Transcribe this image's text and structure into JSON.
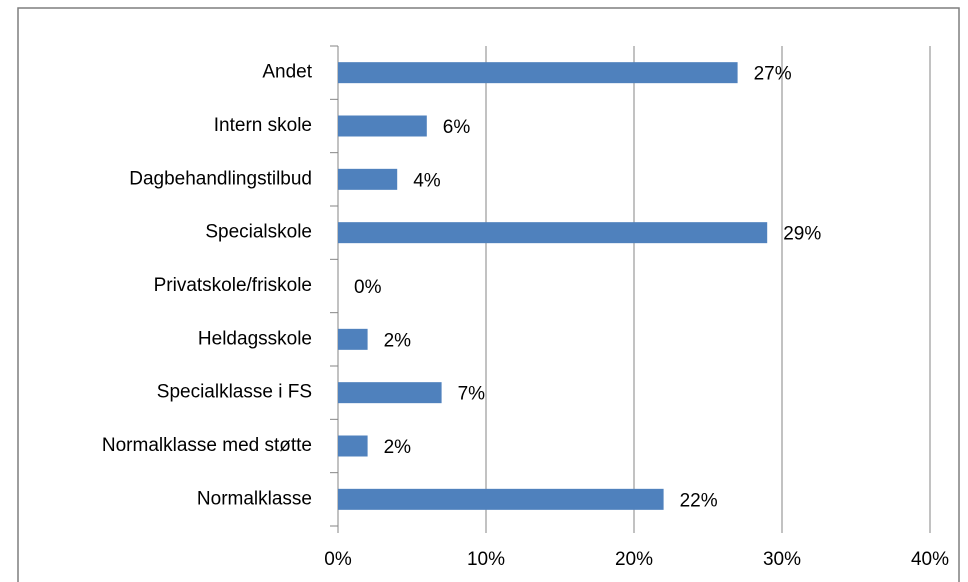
{
  "chart_data": {
    "type": "barh",
    "categories": [
      "Andet",
      "Intern skole",
      "Dagbehandlingstilbud",
      "Specialskole",
      "Privatskole/friskole",
      "Heldagsskole",
      "Specialklasse i FS",
      "Normalklasse med støtte",
      "Normalklasse"
    ],
    "values": [
      27,
      6,
      4,
      29,
      0,
      2,
      7,
      2,
      22
    ],
    "value_labels": [
      "27%",
      "6%",
      "4%",
      "29%",
      "0%",
      "2%",
      "7%",
      "2%",
      "22%"
    ],
    "color": "#4f81bd",
    "xlim": [
      0,
      40
    ],
    "xticks": [
      {
        "value": 0,
        "label": "0%"
      },
      {
        "value": 10,
        "label": "10%"
      },
      {
        "value": 20,
        "label": "20%"
      },
      {
        "value": 30,
        "label": "30%"
      },
      {
        "value": 40,
        "label": "40%"
      }
    ],
    "grid": true
  }
}
